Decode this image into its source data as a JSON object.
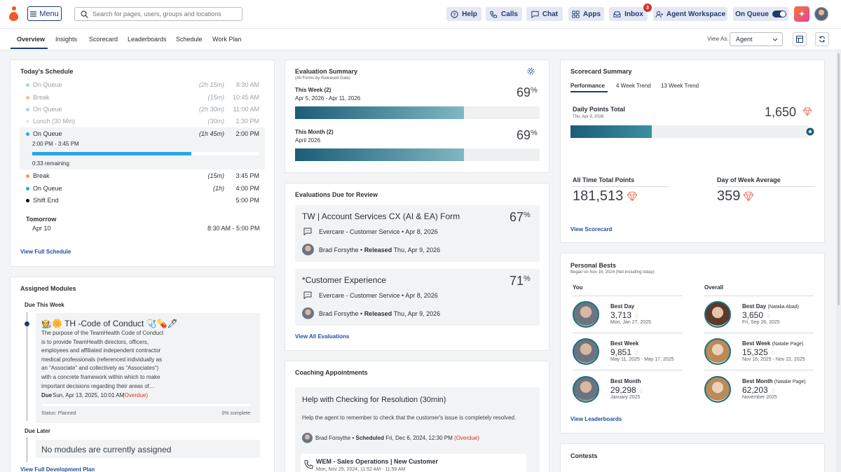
{
  "topbar": {
    "menu_label": "Menu",
    "search_placeholder": "Search for pages, users, groups and locations",
    "help": "Help",
    "calls": "Calls",
    "chat": "Chat",
    "apps": "Apps",
    "inbox": "Inbox",
    "inbox_badge": "3",
    "agent_workspace": "Agent Workspace",
    "on_queue": "On Queue"
  },
  "tabs": [
    "Overview",
    "Insights",
    "Scorecard",
    "Leaderboards",
    "Schedule",
    "Work Plan"
  ],
  "view_as": {
    "label": "View As:",
    "value": "Agent"
  },
  "schedule": {
    "title": "Today's Schedule",
    "rows": [
      {
        "name": "On Queue",
        "dur": "(2h 15m)",
        "time": "8:30 AM"
      },
      {
        "name": "Break",
        "dur": "(15m)",
        "time": "10:45 AM"
      },
      {
        "name": "On Queue",
        "dur": "(2h 30m)",
        "time": "11:00 AM"
      },
      {
        "name": "Lunch (30 Min)",
        "dur": "(30m)",
        "time": "1:30 PM"
      },
      {
        "name": "On Queue",
        "dur": "(1h 45m)",
        "time": "2:00 PM"
      },
      {
        "name": "Break",
        "dur": "(15m)",
        "time": "3:45 PM"
      },
      {
        "name": "On Queue",
        "dur": "(1h)",
        "time": "4:00 PM"
      },
      {
        "name": "Shift End",
        "dur": "",
        "time": "5:00 PM"
      }
    ],
    "current_range": "2:00 PM - 3:45 PM",
    "current_remaining": "0:33 remaining",
    "current_progress": 0.7,
    "tomorrow_label": "Tomorrow",
    "tomorrow_date": "Apr 10",
    "tomorrow_time": "8:30 AM - 5:00 PM",
    "link": "View Full Schedule"
  },
  "modules": {
    "title": "Assigned Modules",
    "due_this_week": "Due This Week",
    "module_title": "🧑‍🌾🌼 TH -Code of Conduct 🩺💊🖊",
    "module_desc": "The purpose of the TeamHealth Code of Conduct is to provide TeamHealth directors, officers, employees and affiliated independent contractor medical professionals (referenced individually as an “Associate” and collectively as “Associates”) with a concrete framework within which to make important decisions regarding their areas of...",
    "due_label": "Due",
    "due_date": "Sun, Apr 13, 2025, 10:01 AM",
    "overdue": "(Overdue)",
    "status": "Status: Planned",
    "complete": "0% complete",
    "due_later": "Due Later",
    "no_modules": "No modules are currently assigned",
    "link": "View Full Development Plan"
  },
  "eval_summary": {
    "title": "Evaluation Summary",
    "subtitle": "(All Forms by Released Date)",
    "week_label": "This Week (2)",
    "week_range": "Apr 5, 2026 - Apr 11, 2026",
    "week_pct": "69",
    "week_fill": 0.69,
    "month_label": "This Month (2)",
    "month_range": "April 2026",
    "month_pct": "69",
    "month_fill": 0.69
  },
  "eval_due": {
    "title": "Evaluations Due for Review",
    "items": [
      {
        "form": "TW | Account Services CX (AI & EA) Form",
        "pct": "67",
        "queue": "Evercare - Customer Service • Apr 8, 2026",
        "person": "Brad Forsythe",
        "released": "Released",
        "date": "Thu, Apr 9, 2026"
      },
      {
        "form": "*Customer Experience",
        "pct": "71",
        "queue": "Evercare - Customer Service • Apr 8, 2026",
        "person": "Brad Forsythe",
        "released": "Released",
        "date": "Thu, Apr 9, 2026"
      }
    ],
    "link": "View All Evaluations"
  },
  "coaching": {
    "title": "Coaching Appointments",
    "appt_title": "Help with Checking for Resolution (30min)",
    "appt_desc": "Help the agent to remember to check that the customer's issue is completely resolved.",
    "person": "Brad Forsythe",
    "scheduled": "Scheduled",
    "sched_date": "Fri, Dec 6, 2024, 12:30 PM",
    "overdue": "(Overdue)",
    "call_title": "WEM - Sales Operations | New Customer",
    "call_date": "Mon, Nov 25, 2024, 11:52 AM - 11:59 AM"
  },
  "scorecard": {
    "title": "Scorecard Summary",
    "tabs": [
      "Performance",
      "4 Week Trend",
      "13 Week Trend"
    ],
    "daily_label": "Daily Points Total",
    "daily_date": "Thu, Apr 9, 2026",
    "daily_value": "1,650",
    "daily_fill": 0.34,
    "alltime_label": "All Time Total Points",
    "alltime_value": "181,513",
    "dow_label": "Day of Week Average",
    "dow_value": "359",
    "link": "View Scorecard"
  },
  "bests": {
    "title": "Personal Bests",
    "subtitle": "Began on Nov 16, 2024 (Not including today)",
    "you": "You",
    "overall": "Overall",
    "you_items": [
      {
        "label": "Best Day",
        "value": "3,713",
        "date": "Mon, Jan 27, 2025"
      },
      {
        "label": "Best Week",
        "value": "9,851",
        "date": "May 11, 2025 - May 17, 2025"
      },
      {
        "label": "Best Month",
        "value": "29,298",
        "date": "January 2025"
      }
    ],
    "overall_items": [
      {
        "label": "Best Day",
        "who": "(Natalia Abad)",
        "value": "3,650",
        "date": "Fri, Sep 26, 2025"
      },
      {
        "label": "Best Week",
        "who": "(Natalie Page)",
        "value": "15,325",
        "date": "Nov 16, 2025 - Nov 22, 2025"
      },
      {
        "label": "Best Month",
        "who": "(Natalie Page)",
        "value": "62,203",
        "date": "November 2025"
      }
    ],
    "link": "View Leaderboards"
  },
  "contests": {
    "title": "Contests"
  },
  "colors": {
    "accent": "#1f3a6e",
    "link": "#1f4f9c",
    "overdue": "#d6322d",
    "bar_start": "#1b5d78",
    "bar_end": "#7fb7c2",
    "progress": "#29a6e6"
  },
  "icons": [
    "menu-icon",
    "search-icon",
    "help-icon",
    "phone-icon",
    "chat-icon",
    "apps-icon",
    "inbox-icon",
    "agent-icon",
    "settings-icon",
    "gem-icon",
    "message-icon",
    "calendar-icon",
    "refresh-icon",
    "chevron-down-icon",
    "star-badge-icon"
  ]
}
